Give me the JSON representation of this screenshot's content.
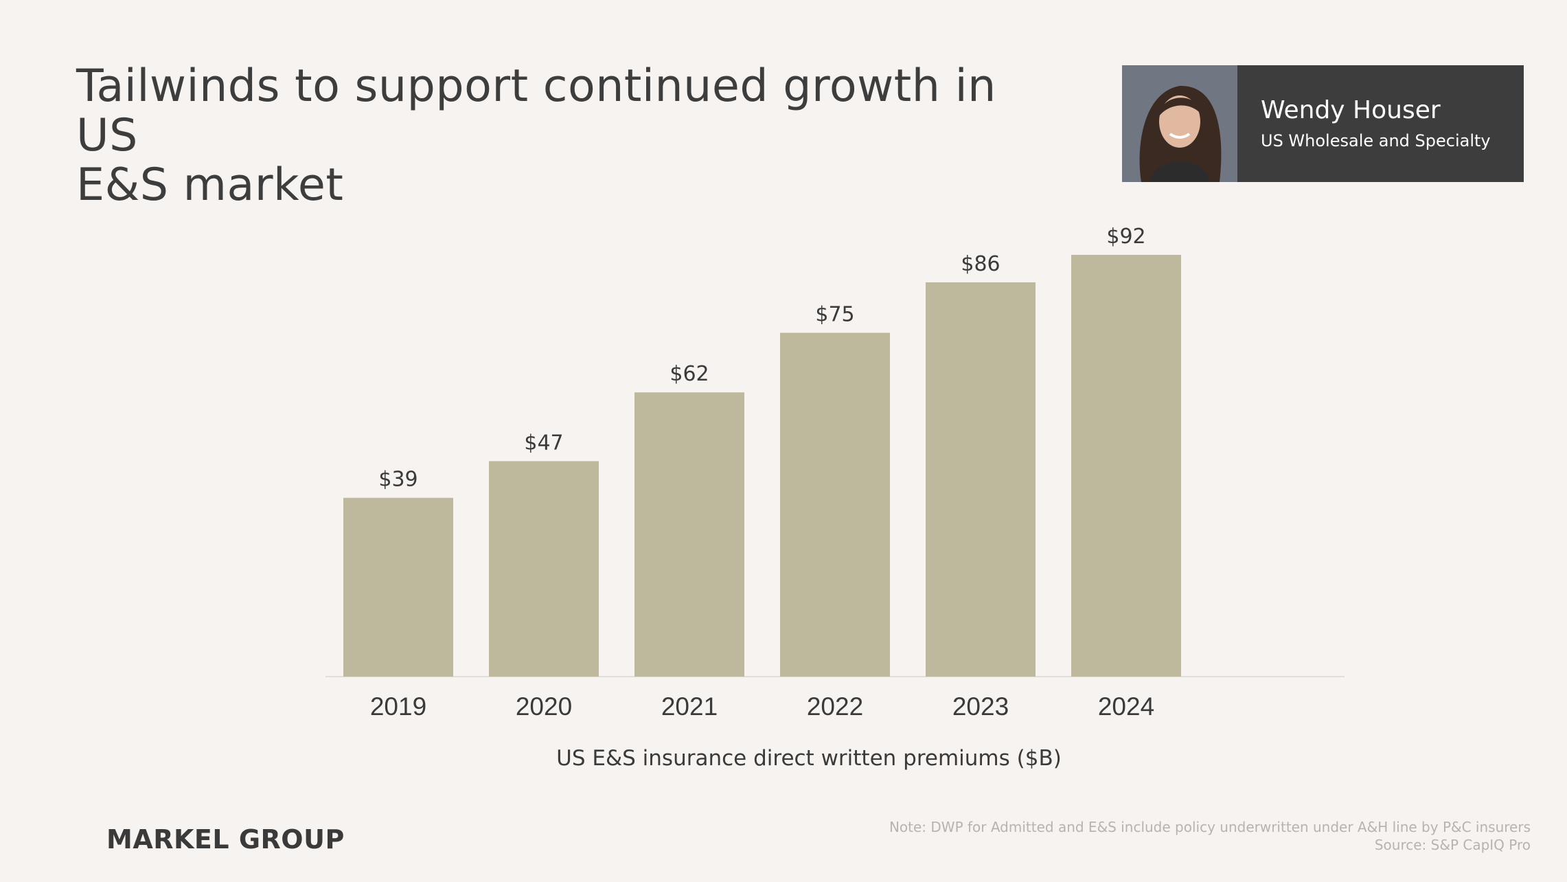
{
  "title_line1": "Tailwinds to support continued growth in US",
  "title_line2": "E&S market",
  "speaker": {
    "name": "Wendy Houser",
    "role": "US Wholesale and Specialty"
  },
  "chart_data": {
    "type": "bar",
    "title": "",
    "xlabel": "US E&S insurance direct written premiums ($B)",
    "ylabel": "",
    "categories": [
      "2019",
      "2020",
      "2021",
      "2022",
      "2023",
      "2024"
    ],
    "values": [
      39,
      47,
      62,
      75,
      86,
      92
    ],
    "value_labels": [
      "$39",
      "$47",
      "$62",
      "$75",
      "$86",
      "$92"
    ],
    "ylim": [
      0,
      92
    ],
    "bar_color": "#beb99c",
    "grid": false,
    "legend": "none"
  },
  "footer": {
    "brand": "MARKEL GROUP",
    "note": "Note: DWP for Admitted and E&S include policy underwritten under A&H line by P&C insurers",
    "source": "Source: S&P CapIQ Pro"
  }
}
